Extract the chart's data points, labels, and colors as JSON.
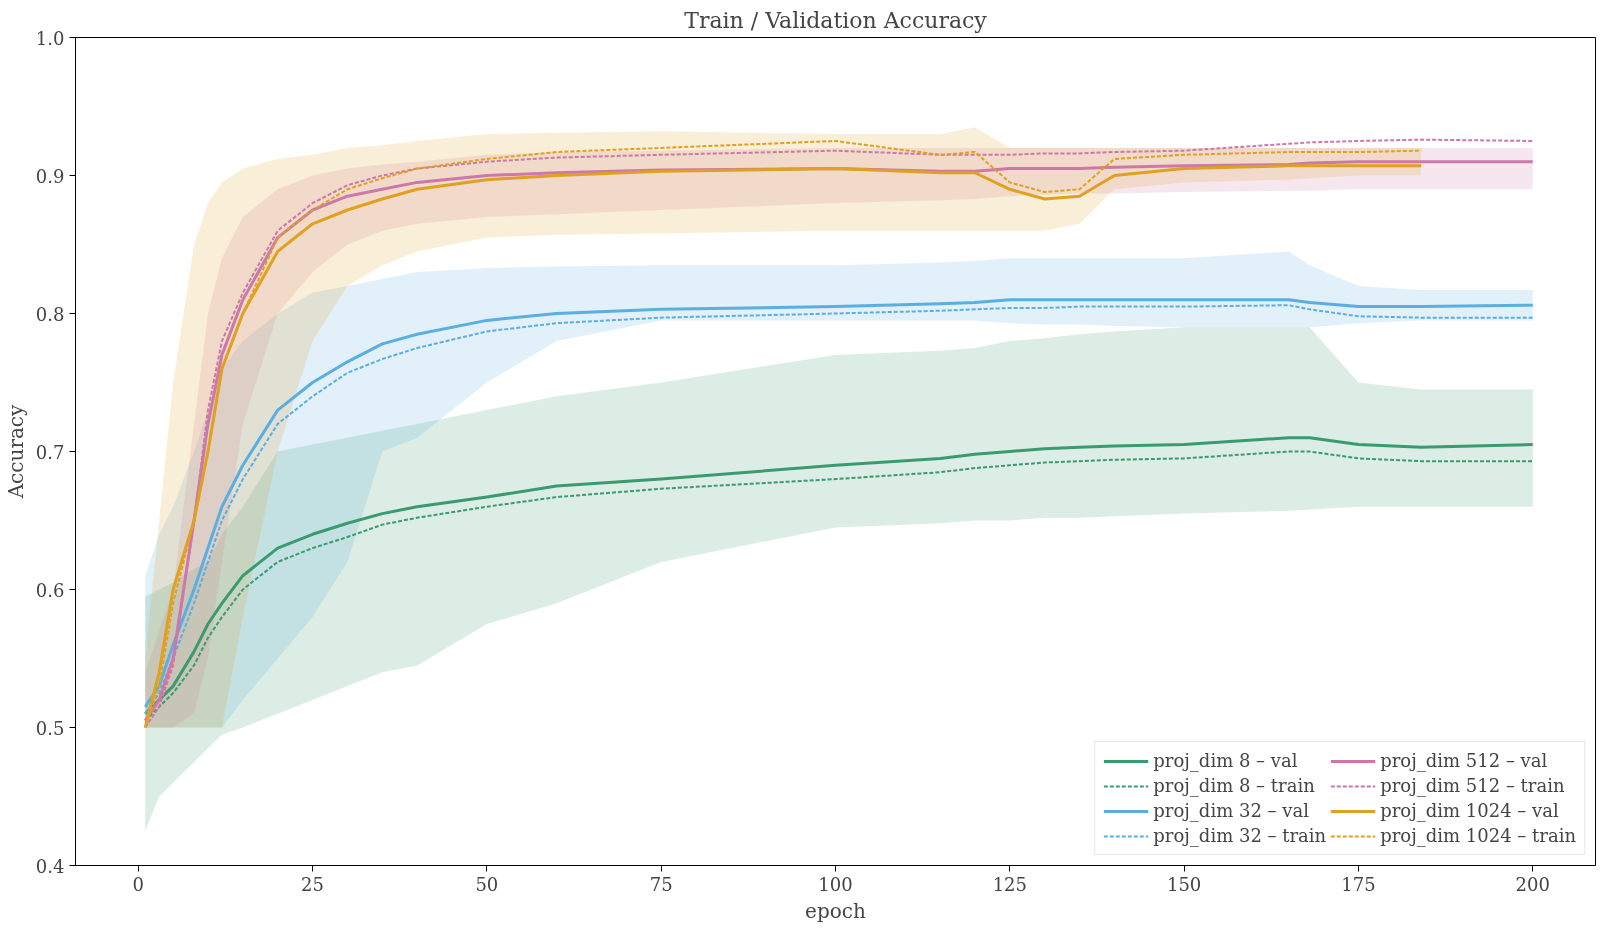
{
  "chart_data": {
    "type": "line",
    "title": "Train / Validation Accuracy",
    "xlabel": "epoch",
    "ylabel": "Accuracy",
    "x": [
      1,
      3,
      5,
      8,
      10,
      12,
      15,
      20,
      25,
      30,
      35,
      40,
      50,
      60,
      75,
      100,
      115,
      120,
      125,
      130,
      135,
      140,
      150,
      165,
      168,
      175,
      184,
      200
    ],
    "xlim": [
      -9,
      209
    ],
    "ylim": [
      0.4,
      1.0
    ],
    "xticks": [
      0,
      25,
      50,
      75,
      100,
      125,
      150,
      175,
      200
    ],
    "yticks": [
      {
        "value": 0.4,
        "label": "0.4"
      },
      {
        "value": 0.5,
        "label": "0.5"
      },
      {
        "value": 0.6,
        "label": "0.6"
      },
      {
        "value": 0.7,
        "label": "0.7"
      },
      {
        "value": 0.8,
        "label": "0.8"
      },
      {
        "value": 0.9,
        "label": "0.9"
      },
      {
        "value": 1.0,
        "label": "1.0"
      }
    ],
    "grid": false,
    "legend": "bottom right",
    "series": [
      {
        "name": "proj_dim 8 – val",
        "color": "#3a9b6e",
        "line_style": "solid",
        "values": [
          0.51,
          0.52,
          0.53,
          0.555,
          0.575,
          0.59,
          0.61,
          0.63,
          0.64,
          0.648,
          0.655,
          0.66,
          0.667,
          0.675,
          0.68,
          0.69,
          0.695,
          0.698,
          0.7,
          0.702,
          0.703,
          0.704,
          0.705,
          0.71,
          0.71,
          0.705,
          0.703,
          0.705
        ],
        "lower": [
          0.425,
          0.45,
          0.46,
          0.475,
          0.485,
          0.495,
          0.5,
          0.51,
          0.52,
          0.53,
          0.54,
          0.545,
          0.575,
          0.59,
          0.62,
          0.645,
          0.648,
          0.65,
          0.65,
          0.652,
          0.652,
          0.653,
          0.655,
          0.657,
          0.658,
          0.66,
          0.66,
          0.66
        ],
        "upper": [
          0.595,
          0.6,
          0.605,
          0.615,
          0.62,
          0.64,
          0.66,
          0.7,
          0.705,
          0.71,
          0.715,
          0.72,
          0.73,
          0.74,
          0.75,
          0.77,
          0.773,
          0.775,
          0.78,
          0.782,
          0.785,
          0.787,
          0.79,
          0.79,
          0.79,
          0.75,
          0.745,
          0.745
        ]
      },
      {
        "name": "proj_dim 8 – train",
        "color": "#3a9b6e",
        "line_style": "dashed",
        "values": [
          0.505,
          0.515,
          0.525,
          0.545,
          0.565,
          0.58,
          0.6,
          0.62,
          0.63,
          0.638,
          0.647,
          0.652,
          0.66,
          0.667,
          0.673,
          0.68,
          0.685,
          0.688,
          0.69,
          0.692,
          0.693,
          0.694,
          0.695,
          0.7,
          0.7,
          0.695,
          0.693,
          0.693
        ]
      },
      {
        "name": "proj_dim 32 – val",
        "color": "#5aaee0",
        "line_style": "solid",
        "values": [
          0.515,
          0.53,
          0.56,
          0.6,
          0.63,
          0.66,
          0.69,
          0.73,
          0.75,
          0.765,
          0.778,
          0.785,
          0.795,
          0.8,
          0.803,
          0.805,
          0.807,
          0.808,
          0.81,
          0.81,
          0.81,
          0.81,
          0.81,
          0.81,
          0.808,
          0.805,
          0.805,
          0.806
        ],
        "lower": [
          0.5,
          0.5,
          0.5,
          0.5,
          0.5,
          0.5,
          0.52,
          0.55,
          0.58,
          0.62,
          0.7,
          0.71,
          0.75,
          0.78,
          0.795,
          0.795,
          0.795,
          0.795,
          0.793,
          0.792,
          0.792,
          0.791,
          0.79,
          0.79,
          0.79,
          0.793,
          0.795,
          0.795
        ],
        "upper": [
          0.61,
          0.64,
          0.66,
          0.7,
          0.73,
          0.76,
          0.78,
          0.8,
          0.815,
          0.82,
          0.825,
          0.83,
          0.833,
          0.834,
          0.835,
          0.835,
          0.837,
          0.838,
          0.84,
          0.84,
          0.84,
          0.84,
          0.84,
          0.845,
          0.835,
          0.82,
          0.817,
          0.817
        ]
      },
      {
        "name": "proj_dim 32 – train",
        "color": "#5aaee0",
        "line_style": "dashed",
        "values": [
          0.51,
          0.525,
          0.55,
          0.59,
          0.62,
          0.65,
          0.68,
          0.72,
          0.74,
          0.757,
          0.767,
          0.775,
          0.787,
          0.793,
          0.797,
          0.8,
          0.802,
          0.803,
          0.804,
          0.804,
          0.805,
          0.805,
          0.805,
          0.806,
          0.803,
          0.798,
          0.797,
          0.797
        ]
      },
      {
        "name": "proj_dim 512 – val",
        "color": "#cc79a7",
        "line_style": "solid",
        "values": [
          0.505,
          0.52,
          0.55,
          0.65,
          0.72,
          0.77,
          0.81,
          0.855,
          0.875,
          0.885,
          0.89,
          0.895,
          0.9,
          0.902,
          0.904,
          0.905,
          0.903,
          0.903,
          0.905,
          0.905,
          0.905,
          0.906,
          0.907,
          0.908,
          0.909,
          0.91,
          0.91,
          0.91
        ],
        "lower": [
          0.5,
          0.5,
          0.5,
          0.51,
          0.55,
          0.62,
          0.72,
          0.8,
          0.83,
          0.85,
          0.86,
          0.865,
          0.87,
          0.872,
          0.875,
          0.88,
          0.882,
          0.883,
          0.885,
          0.886,
          0.887,
          0.887,
          0.888,
          0.889,
          0.889,
          0.89,
          0.89,
          0.89
        ],
        "upper": [
          0.54,
          0.57,
          0.6,
          0.72,
          0.8,
          0.84,
          0.87,
          0.89,
          0.9,
          0.905,
          0.908,
          0.91,
          0.915,
          0.917,
          0.918,
          0.92,
          0.92,
          0.92,
          0.92,
          0.92,
          0.92,
          0.92,
          0.92,
          0.92,
          0.92,
          0.92,
          0.92,
          0.92
        ]
      },
      {
        "name": "proj_dim 512 – train",
        "color": "#cc79a7",
        "line_style": "dashed",
        "values": [
          0.5,
          0.515,
          0.545,
          0.65,
          0.73,
          0.78,
          0.815,
          0.86,
          0.88,
          0.893,
          0.9,
          0.905,
          0.91,
          0.913,
          0.915,
          0.918,
          0.915,
          0.915,
          0.915,
          0.916,
          0.916,
          0.917,
          0.918,
          0.923,
          0.924,
          0.925,
          0.926,
          0.925
        ]
      },
      {
        "name": "proj_dim 1024 – val",
        "color": "#e0a020",
        "line_style": "solid",
        "values": [
          0.5,
          0.54,
          0.6,
          0.65,
          0.7,
          0.76,
          0.8,
          0.845,
          0.865,
          0.875,
          0.883,
          0.89,
          0.897,
          0.9,
          0.903,
          0.905,
          0.902,
          0.902,
          0.89,
          0.883,
          0.885,
          0.9,
          0.905,
          0.907,
          0.907,
          0.907,
          0.907,
          null
        ],
        "lower": [
          0.5,
          0.5,
          0.5,
          0.5,
          0.5,
          0.5,
          0.58,
          0.7,
          0.78,
          0.82,
          0.835,
          0.845,
          0.855,
          0.857,
          0.858,
          0.86,
          0.86,
          0.86,
          0.86,
          0.86,
          0.865,
          0.89,
          0.895,
          0.897,
          0.898,
          0.9,
          0.9,
          null
        ],
        "upper": [
          0.55,
          0.65,
          0.75,
          0.85,
          0.88,
          0.895,
          0.905,
          0.912,
          0.915,
          0.92,
          0.922,
          0.925,
          0.93,
          0.931,
          0.932,
          0.93,
          0.93,
          0.935,
          0.92,
          0.92,
          0.92,
          0.92,
          0.92,
          0.92,
          0.92,
          0.92,
          0.92,
          null
        ]
      },
      {
        "name": "proj_dim 1024 – train",
        "color": "#e0a020",
        "line_style": "dashed",
        "values": [
          0.5,
          0.53,
          0.59,
          0.65,
          0.7,
          0.76,
          0.8,
          0.855,
          0.875,
          0.89,
          0.898,
          0.905,
          0.912,
          0.917,
          0.92,
          0.925,
          0.915,
          0.917,
          0.895,
          0.888,
          0.89,
          0.912,
          0.915,
          0.917,
          0.917,
          0.917,
          0.918,
          null
        ]
      }
    ]
  }
}
